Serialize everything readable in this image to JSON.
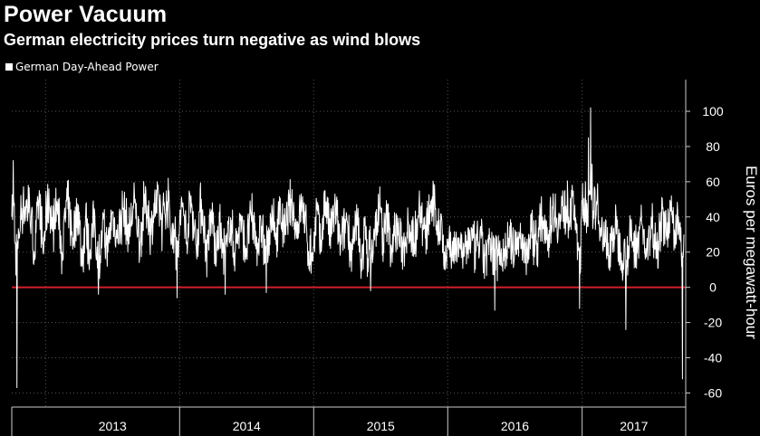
{
  "header": {
    "title": "Power Vacuum",
    "subtitle": "German electricity prices turn negative as wind blows"
  },
  "colors": {
    "background": "#000000",
    "series": "#ffffff",
    "zero_line": "#d0202c",
    "grid": "#555555"
  },
  "chart_data": {
    "type": "line",
    "title": "Power Vacuum",
    "subtitle": "German electricity prices turn negative as wind blows",
    "ylabel": "Euros per megawatt-hour",
    "xlabel": "",
    "ylim": [
      -68,
      118
    ],
    "yticks": [
      100,
      80,
      60,
      40,
      20,
      0,
      -20,
      -40,
      -60
    ],
    "xlim": [
      "2012-10-01",
      "2017-10-10"
    ],
    "year_labels": [
      "2013",
      "2014",
      "2015",
      "2016",
      "2017"
    ],
    "grid": true,
    "legend_position": "top-left",
    "series": [
      {
        "name": "German Day-Ahead Power",
        "color": "#ffffff",
        "points": [
          [
            "2012-10-01",
            40
          ],
          [
            "2012-10-05",
            72
          ],
          [
            "2012-10-10",
            25
          ],
          [
            "2012-10-15",
            -57
          ],
          [
            "2012-10-20",
            30
          ],
          [
            "2012-11-01",
            52
          ],
          [
            "2012-11-15",
            58
          ],
          [
            "2012-12-01",
            18
          ],
          [
            "2012-12-15",
            55
          ],
          [
            "2012-12-25",
            20
          ],
          [
            "2013-01-10",
            56
          ],
          [
            "2013-01-20",
            32
          ],
          [
            "2013-02-01",
            48
          ],
          [
            "2013-02-15",
            20
          ],
          [
            "2013-03-01",
            50
          ],
          [
            "2013-03-15",
            28
          ],
          [
            "2013-04-01",
            45
          ],
          [
            "2013-04-10",
            12
          ],
          [
            "2013-04-20",
            40
          ],
          [
            "2013-05-01",
            18
          ],
          [
            "2013-05-15",
            42
          ],
          [
            "2013-05-25",
            -4
          ],
          [
            "2013-06-05",
            35
          ],
          [
            "2013-06-20",
            20
          ],
          [
            "2013-07-01",
            42
          ],
          [
            "2013-07-15",
            28
          ],
          [
            "2013-08-01",
            45
          ],
          [
            "2013-08-15",
            30
          ],
          [
            "2013-09-01",
            48
          ],
          [
            "2013-09-15",
            25
          ],
          [
            "2013-10-01",
            55
          ],
          [
            "2013-10-15",
            30
          ],
          [
            "2013-11-01",
            60
          ],
          [
            "2013-11-15",
            35
          ],
          [
            "2013-12-01",
            62
          ],
          [
            "2013-12-10",
            25
          ],
          [
            "2013-12-20",
            40
          ],
          [
            "2013-12-25",
            -6
          ],
          [
            "2013-12-30",
            30
          ],
          [
            "2014-01-10",
            48
          ],
          [
            "2014-01-20",
            26
          ],
          [
            "2014-02-01",
            52
          ],
          [
            "2014-02-15",
            24
          ],
          [
            "2014-03-01",
            50
          ],
          [
            "2014-03-15",
            20
          ],
          [
            "2014-04-01",
            42
          ],
          [
            "2014-04-10",
            12
          ],
          [
            "2014-04-20",
            38
          ],
          [
            "2014-05-05",
            -4
          ],
          [
            "2014-05-15",
            40
          ],
          [
            "2014-06-01",
            20
          ],
          [
            "2014-06-15",
            38
          ],
          [
            "2014-07-01",
            22
          ],
          [
            "2014-07-15",
            40
          ],
          [
            "2014-08-01",
            25
          ],
          [
            "2014-08-15",
            36
          ],
          [
            "2014-08-25",
            -3
          ],
          [
            "2014-09-05",
            42
          ],
          [
            "2014-09-20",
            28
          ],
          [
            "2014-10-01",
            44
          ],
          [
            "2014-10-15",
            30
          ],
          [
            "2014-11-01",
            50
          ],
          [
            "2014-11-15",
            32
          ],
          [
            "2014-12-01",
            48
          ],
          [
            "2014-12-15",
            25
          ],
          [
            "2014-12-25",
            8
          ],
          [
            "2015-01-10",
            45
          ],
          [
            "2015-01-20",
            20
          ],
          [
            "2015-02-01",
            55
          ],
          [
            "2015-02-15",
            28
          ],
          [
            "2015-03-01",
            46
          ],
          [
            "2015-03-15",
            22
          ],
          [
            "2015-04-01",
            40
          ],
          [
            "2015-04-15",
            18
          ],
          [
            "2015-05-01",
            38
          ],
          [
            "2015-05-10",
            5
          ],
          [
            "2015-05-20",
            35
          ],
          [
            "2015-06-05",
            -2
          ],
          [
            "2015-06-15",
            30
          ],
          [
            "2015-07-01",
            45
          ],
          [
            "2015-07-10",
            25
          ],
          [
            "2015-07-20",
            40
          ],
          [
            "2015-08-01",
            22
          ],
          [
            "2015-08-15",
            35
          ],
          [
            "2015-09-01",
            20
          ],
          [
            "2015-09-15",
            38
          ],
          [
            "2015-10-01",
            25
          ],
          [
            "2015-10-15",
            48
          ],
          [
            "2015-11-01",
            28
          ],
          [
            "2015-11-15",
            45
          ],
          [
            "2015-11-25",
            52
          ],
          [
            "2015-12-05",
            30
          ],
          [
            "2015-12-15",
            40
          ],
          [
            "2015-12-25",
            10
          ],
          [
            "2016-01-05",
            30
          ],
          [
            "2016-01-15",
            15
          ],
          [
            "2016-02-01",
            28
          ],
          [
            "2016-02-15",
            18
          ],
          [
            "2016-03-01",
            30
          ],
          [
            "2016-03-15",
            20
          ],
          [
            "2016-04-01",
            28
          ],
          [
            "2016-04-10",
            5
          ],
          [
            "2016-04-20",
            26
          ],
          [
            "2016-05-08",
            -13
          ],
          [
            "2016-05-20",
            25
          ],
          [
            "2016-06-01",
            15
          ],
          [
            "2016-06-15",
            28
          ],
          [
            "2016-07-01",
            20
          ],
          [
            "2016-07-15",
            30
          ],
          [
            "2016-08-01",
            18
          ],
          [
            "2016-08-15",
            32
          ],
          [
            "2016-09-01",
            25
          ],
          [
            "2016-09-15",
            40
          ],
          [
            "2016-10-01",
            30
          ],
          [
            "2016-10-15",
            45
          ],
          [
            "2016-11-01",
            35
          ],
          [
            "2016-11-15",
            55
          ],
          [
            "2016-11-25",
            40
          ],
          [
            "2016-12-05",
            58
          ],
          [
            "2016-12-15",
            38
          ],
          [
            "2016-12-25",
            -12
          ],
          [
            "2016-12-30",
            40
          ],
          [
            "2017-01-10",
            60
          ],
          [
            "2017-01-18",
            85
          ],
          [
            "2017-01-24",
            102
          ],
          [
            "2017-01-28",
            70
          ],
          [
            "2017-02-05",
            55
          ],
          [
            "2017-02-15",
            38
          ],
          [
            "2017-03-01",
            32
          ],
          [
            "2017-03-15",
            18
          ],
          [
            "2017-04-01",
            35
          ],
          [
            "2017-04-15",
            20
          ],
          [
            "2017-04-30",
            -24
          ],
          [
            "2017-05-10",
            30
          ],
          [
            "2017-05-25",
            22
          ],
          [
            "2017-06-10",
            38
          ],
          [
            "2017-06-25",
            18
          ],
          [
            "2017-07-10",
            35
          ],
          [
            "2017-07-25",
            25
          ],
          [
            "2017-08-10",
            40
          ],
          [
            "2017-08-25",
            28
          ],
          [
            "2017-09-01",
            52
          ],
          [
            "2017-09-10",
            30
          ],
          [
            "2017-09-20",
            40
          ],
          [
            "2017-09-28",
            20
          ],
          [
            "2017-10-01",
            -52
          ],
          [
            "2017-10-05",
            30
          ]
        ]
      }
    ]
  }
}
